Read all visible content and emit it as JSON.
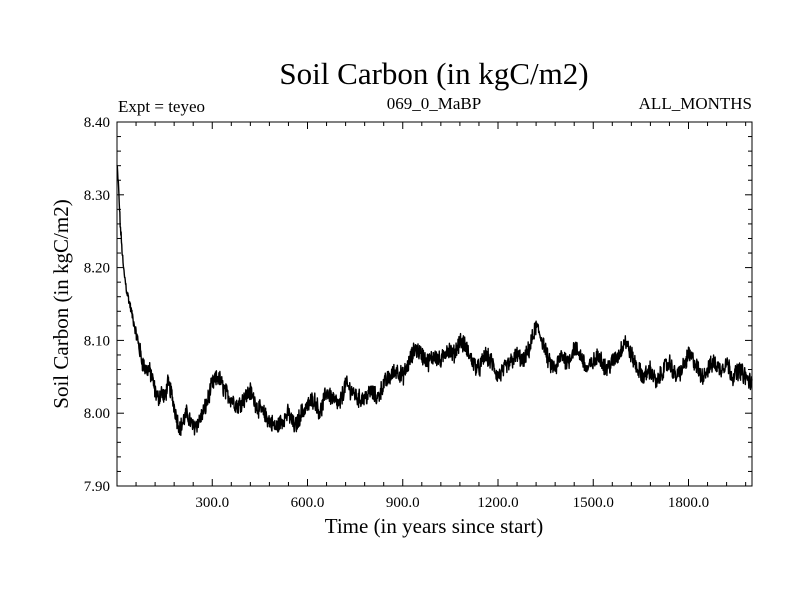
{
  "chart_data": {
    "type": "line",
    "title": "Soil Carbon (in kgC/m2)",
    "subtitle_left": "Expt = teyeo",
    "subtitle_center": "069_0_MaBP",
    "subtitle_right": "ALL_MONTHS",
    "xlabel": "Time (in years since start)",
    "ylabel": "Soil Carbon (in kgC/m2)",
    "xlim": [
      0,
      2000
    ],
    "ylim": [
      7.9,
      8.4
    ],
    "xticks": [
      300,
      600,
      900,
      1200,
      1500,
      1800
    ],
    "xtick_labels": [
      "300.0",
      "600.0",
      "900.0",
      "1200.0",
      "1500.0",
      "1800.0"
    ],
    "yticks": [
      7.9,
      8.0,
      8.1,
      8.2,
      8.3,
      8.4
    ],
    "ytick_labels": [
      "7.90",
      "8.00",
      "8.10",
      "8.20",
      "8.30",
      "8.40"
    ],
    "grid": false,
    "line_color": "#000000",
    "series": [
      {
        "name": "Soil Carbon",
        "x": [
          0,
          5,
          10,
          20,
          30,
          40,
          50,
          60,
          70,
          80,
          90,
          100,
          110,
          120,
          130,
          140,
          150,
          160,
          170,
          180,
          190,
          200,
          220,
          240,
          260,
          280,
          300,
          320,
          340,
          360,
          380,
          400,
          420,
          440,
          460,
          480,
          500,
          520,
          540,
          560,
          580,
          600,
          620,
          640,
          660,
          680,
          700,
          720,
          740,
          760,
          780,
          800,
          820,
          840,
          860,
          880,
          900,
          920,
          940,
          960,
          980,
          1000,
          1020,
          1040,
          1060,
          1080,
          1100,
          1120,
          1140,
          1160,
          1180,
          1200,
          1220,
          1240,
          1260,
          1280,
          1300,
          1320,
          1340,
          1360,
          1380,
          1400,
          1420,
          1440,
          1460,
          1480,
          1500,
          1520,
          1540,
          1560,
          1580,
          1600,
          1620,
          1640,
          1660,
          1680,
          1700,
          1720,
          1740,
          1760,
          1780,
          1800,
          1820,
          1840,
          1860,
          1880,
          1900,
          1920,
          1940,
          1960,
          1980,
          2000
        ],
        "values": [
          8.34,
          8.31,
          8.26,
          8.2,
          8.17,
          8.15,
          8.13,
          8.11,
          8.09,
          8.07,
          8.06,
          8.06,
          8.05,
          8.03,
          8.02,
          8.03,
          8.02,
          8.04,
          8.03,
          8.01,
          7.99,
          7.98,
          8.0,
          7.98,
          7.99,
          8.01,
          8.04,
          8.05,
          8.03,
          8.02,
          8.01,
          8.02,
          8.03,
          8.01,
          8.0,
          7.99,
          7.98,
          7.99,
          8.0,
          7.98,
          8.0,
          8.01,
          8.02,
          8.0,
          8.03,
          8.02,
          8.01,
          8.04,
          8.03,
          8.02,
          8.02,
          8.03,
          8.02,
          8.04,
          8.05,
          8.06,
          8.05,
          8.07,
          8.09,
          8.08,
          8.07,
          8.08,
          8.07,
          8.09,
          8.08,
          8.1,
          8.09,
          8.07,
          8.06,
          8.08,
          8.07,
          8.05,
          8.06,
          8.07,
          8.08,
          8.07,
          8.09,
          8.12,
          8.1,
          8.07,
          8.06,
          8.08,
          8.07,
          8.09,
          8.08,
          8.06,
          8.07,
          8.08,
          8.06,
          8.07,
          8.08,
          8.1,
          8.08,
          8.06,
          8.05,
          8.06,
          8.04,
          8.06,
          8.07,
          8.05,
          8.06,
          8.08,
          8.07,
          8.05,
          8.06,
          8.07,
          8.06,
          8.07,
          8.05,
          8.06,
          8.05,
          8.04
        ]
      }
    ],
    "noise_amplitude": 0.011
  }
}
